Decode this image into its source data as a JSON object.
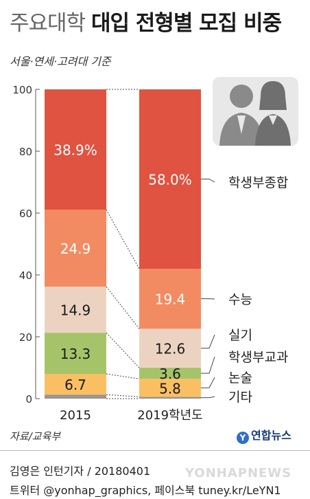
{
  "header": {
    "title_light": "주요대학",
    "title_bold": "대입 전형별 모집 비중",
    "subtitle": "서울·연세·고려대 기준"
  },
  "chart_data": {
    "type": "bar",
    "stacked": true,
    "categories": [
      "2015",
      "2019학년도"
    ],
    "series": [
      {
        "name": "기타",
        "values": [
          1.3,
          0.6
        ],
        "labels": [
          "",
          ""
        ],
        "color": "#9a9590"
      },
      {
        "name": "논술",
        "values": [
          6.7,
          5.8
        ],
        "labels": [
          "6.7",
          "5.8"
        ],
        "color": "#fbbf63"
      },
      {
        "name": "학생부교과",
        "values": [
          13.3,
          3.6
        ],
        "labels": [
          "13.3",
          "3.6"
        ],
        "color": "#a5c46a"
      },
      {
        "name": "실기",
        "values": [
          14.9,
          12.6
        ],
        "labels": [
          "14.9",
          "12.6"
        ],
        "color": "#ecd3c1"
      },
      {
        "name": "수능",
        "values": [
          24.9,
          19.4
        ],
        "labels": [
          "24.9",
          "19.4"
        ],
        "color": "#f38b62"
      },
      {
        "name": "학생부종합",
        "values": [
          38.9,
          58.0
        ],
        "labels": [
          "38.9%",
          "58.0%"
        ],
        "color": "#e05340"
      }
    ],
    "ylim": [
      0,
      100
    ],
    "yticks": [
      0,
      20,
      40,
      60,
      80,
      100
    ],
    "ytick_labels": [
      "0",
      "20",
      "40",
      "60",
      "80",
      "100"
    ],
    "grid": false,
    "legend": "right-side labels"
  },
  "source": "자료/교육부",
  "footer": {
    "credit": "김영은 인턴기자 / 20180401",
    "social": "트위터 @yonhap_graphics, 페이스북 tuney.kr/LeYN1"
  },
  "logo": {
    "mark": "Y",
    "name": "연합뉴스"
  },
  "watermark": "YONHAPNEWS",
  "icon": "people-icon"
}
